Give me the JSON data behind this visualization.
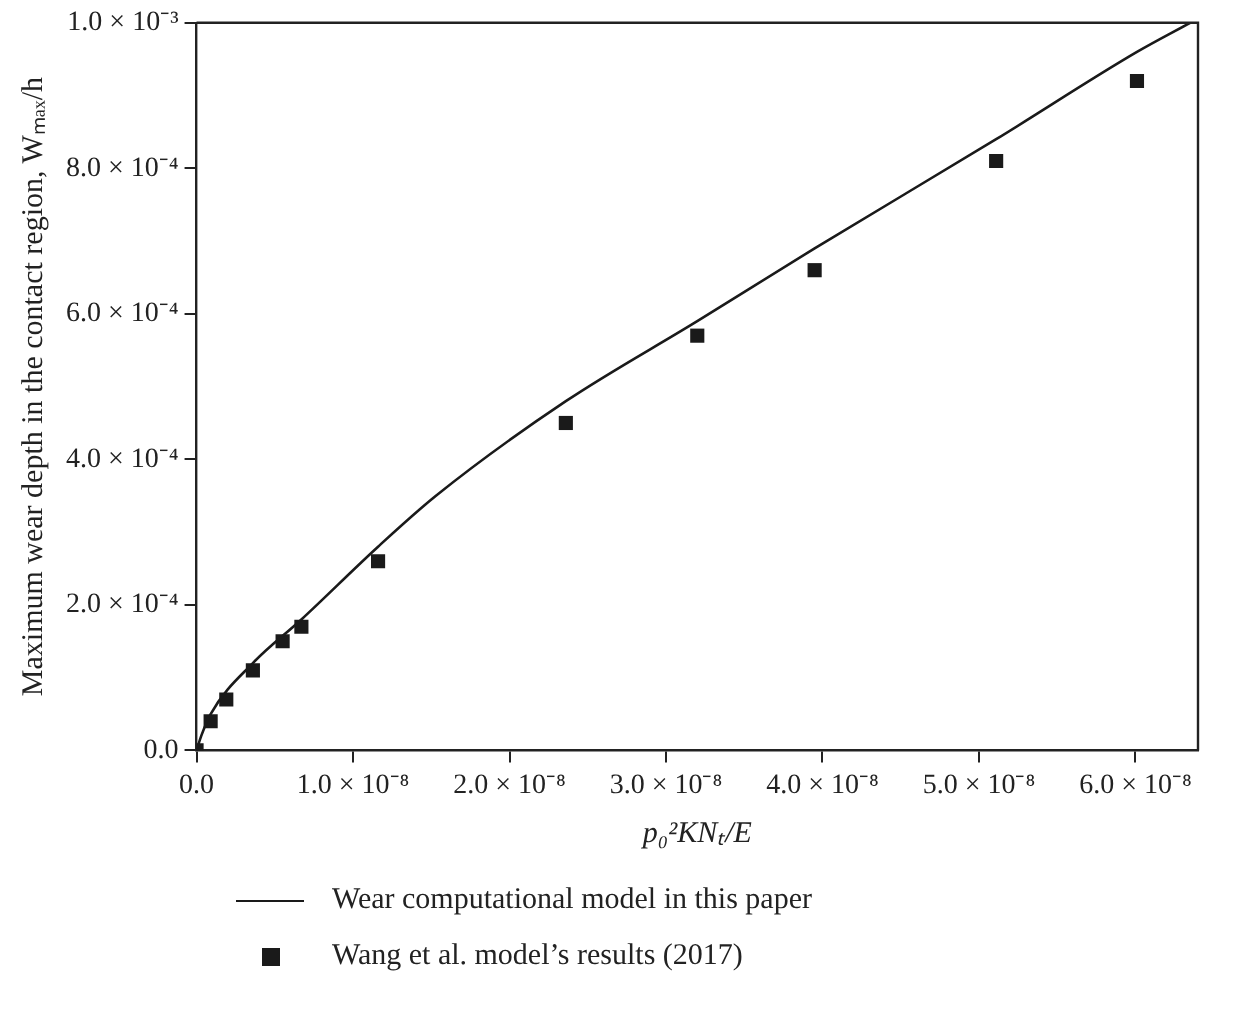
{
  "chart_data": {
    "type": "line",
    "xlabel": "p₀²KNₜ/E",
    "ylabel": "Maximum wear depth in the contact region, Wₘₐₓ/h",
    "xlim": [
      0,
      6.4e-08
    ],
    "xticks": [
      {
        "value": 0,
        "label": "0.0"
      },
      {
        "value": 1e-08,
        "label": "1.0 × 10⁻⁸"
      },
      {
        "value": 2e-08,
        "label": "2.0 × 10⁻⁸"
      },
      {
        "value": 3e-08,
        "label": "3.0 × 10⁻⁸"
      },
      {
        "value": 4e-08,
        "label": "4.0 × 10⁻⁸"
      },
      {
        "value": 5e-08,
        "label": "5.0 × 10⁻⁸"
      },
      {
        "value": 6e-08,
        "label": "6.0 × 10⁻⁸"
      }
    ],
    "ylim": [
      0,
      0.001
    ],
    "yticks": [
      {
        "value": 0,
        "label": "0.0"
      },
      {
        "value": 0.0002,
        "label": "2.0 × 10⁻⁴"
      },
      {
        "value": 0.0004,
        "label": "4.0 × 10⁻⁴"
      },
      {
        "value": 0.0006,
        "label": "6.0 × 10⁻⁴"
      },
      {
        "value": 0.0008,
        "label": "8.0 × 10⁻⁴"
      },
      {
        "value": 0.001,
        "label": "1.0 × 10⁻³"
      }
    ],
    "grid": false,
    "legend": "bottom",
    "series": [
      {
        "name": "Wear computational model in this paper",
        "type": "line",
        "color": "#1a1a1a",
        "marker": "none",
        "line_style": "solid",
        "x": [
          0,
          3e-10,
          9e-10,
          3.6e-09,
          6.7e-09,
          1.16e-08,
          1.53e-08,
          2.36e-08,
          3.2e-08,
          3.95e-08,
          5.11e-08,
          6.01e-08,
          6.35e-08
        ],
        "values": [
          0,
          2e-05,
          5e-05,
          0.00012,
          0.00018,
          0.00028,
          0.00035,
          0.00048,
          0.00059,
          0.00069,
          0.00084,
          0.00096,
          0.001
        ]
      },
      {
        "name": "Wang et al. model’s results (2017)",
        "type": "scatter",
        "color": "#1a1a1a",
        "marker": "square",
        "x": [
          0,
          9e-10,
          1.9e-09,
          3.6e-09,
          5.5e-09,
          6.7e-09,
          1.16e-08,
          2.36e-08,
          3.2e-08,
          3.95e-08,
          5.11e-08,
          6.01e-08
        ],
        "values": [
          0,
          4e-05,
          7e-05,
          0.00011,
          0.00015,
          0.00017,
          0.00026,
          0.00045,
          0.00057,
          0.00066,
          0.00081,
          0.00092
        ]
      }
    ]
  }
}
